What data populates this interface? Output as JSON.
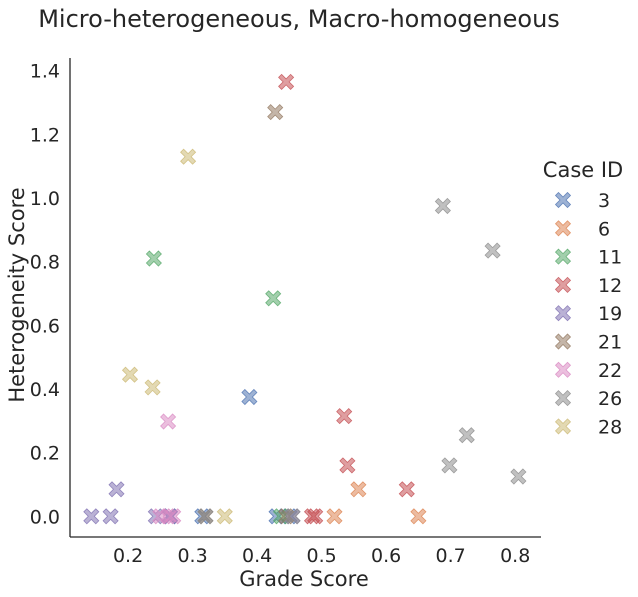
{
  "chart_data": {
    "type": "scatter",
    "title": "Micro-heterogeneous, Macro-homogeneous",
    "xlabel": "Grade Score",
    "ylabel": "Heterogeneity Score",
    "xlim": [
      0.11,
      0.84
    ],
    "ylim": [
      -0.065,
      1.44
    ],
    "xticks": [
      0.2,
      0.3,
      0.4,
      0.5,
      0.6,
      0.7,
      0.8
    ],
    "xtick_labels": [
      "0.2",
      "0.3",
      "0.4",
      "0.5",
      "0.6",
      "0.7",
      "0.8"
    ],
    "yticks": [
      0.0,
      0.2,
      0.4,
      0.6,
      0.8,
      1.0,
      1.2,
      1.4
    ],
    "ytick_labels": [
      "0.0",
      "0.2",
      "0.4",
      "0.6",
      "0.8",
      "1.0",
      "1.2",
      "1.4"
    ],
    "grid": false,
    "legend": {
      "title": "Case ID",
      "placement": "right"
    },
    "marker": "X",
    "series": [
      {
        "name": "3",
        "color": "#4c72b0",
        "points": [
          [
            0.388,
            0.375
          ],
          [
            0.315,
            0.0
          ],
          [
            0.43,
            0.0
          ],
          [
            0.45,
            0.0
          ],
          [
            0.265,
            0.0
          ]
        ]
      },
      {
        "name": "6",
        "color": "#dd8452",
        "points": [
          [
            0.557,
            0.085
          ],
          [
            0.65,
            0.0
          ],
          [
            0.52,
            0.0
          ]
        ]
      },
      {
        "name": "11",
        "color": "#55a868",
        "points": [
          [
            0.24,
            0.81
          ],
          [
            0.425,
            0.685
          ],
          [
            0.437,
            0.0
          ]
        ]
      },
      {
        "name": "12",
        "color": "#c44e52",
        "points": [
          [
            0.445,
            1.365
          ],
          [
            0.535,
            0.315
          ],
          [
            0.54,
            0.16
          ],
          [
            0.632,
            0.085
          ],
          [
            0.485,
            0.0
          ],
          [
            0.49,
            0.0
          ]
        ]
      },
      {
        "name": "19",
        "color": "#8172b3",
        "points": [
          [
            0.182,
            0.085
          ],
          [
            0.143,
            0.0
          ],
          [
            0.173,
            0.0
          ],
          [
            0.243,
            0.0
          ],
          [
            0.265,
            0.0
          ],
          [
            0.455,
            0.0
          ]
        ]
      },
      {
        "name": "21",
        "color": "#937860",
        "points": [
          [
            0.428,
            1.27
          ],
          [
            0.32,
            0.0
          ],
          [
            0.445,
            0.0
          ]
        ]
      },
      {
        "name": "22",
        "color": "#da8bc3",
        "points": [
          [
            0.262,
            0.298
          ],
          [
            0.25,
            0.0
          ],
          [
            0.262,
            0.0
          ],
          [
            0.27,
            0.0
          ]
        ]
      },
      {
        "name": "26",
        "color": "#8c8c8c",
        "points": [
          [
            0.688,
            0.975
          ],
          [
            0.765,
            0.835
          ],
          [
            0.725,
            0.255
          ],
          [
            0.698,
            0.16
          ],
          [
            0.805,
            0.125
          ],
          [
            0.32,
            0.0
          ],
          [
            0.455,
            0.0
          ]
        ]
      },
      {
        "name": "28",
        "color": "#ccb974",
        "points": [
          [
            0.293,
            1.13
          ],
          [
            0.203,
            0.445
          ],
          [
            0.238,
            0.405
          ],
          [
            0.35,
            0.0
          ]
        ]
      }
    ]
  }
}
